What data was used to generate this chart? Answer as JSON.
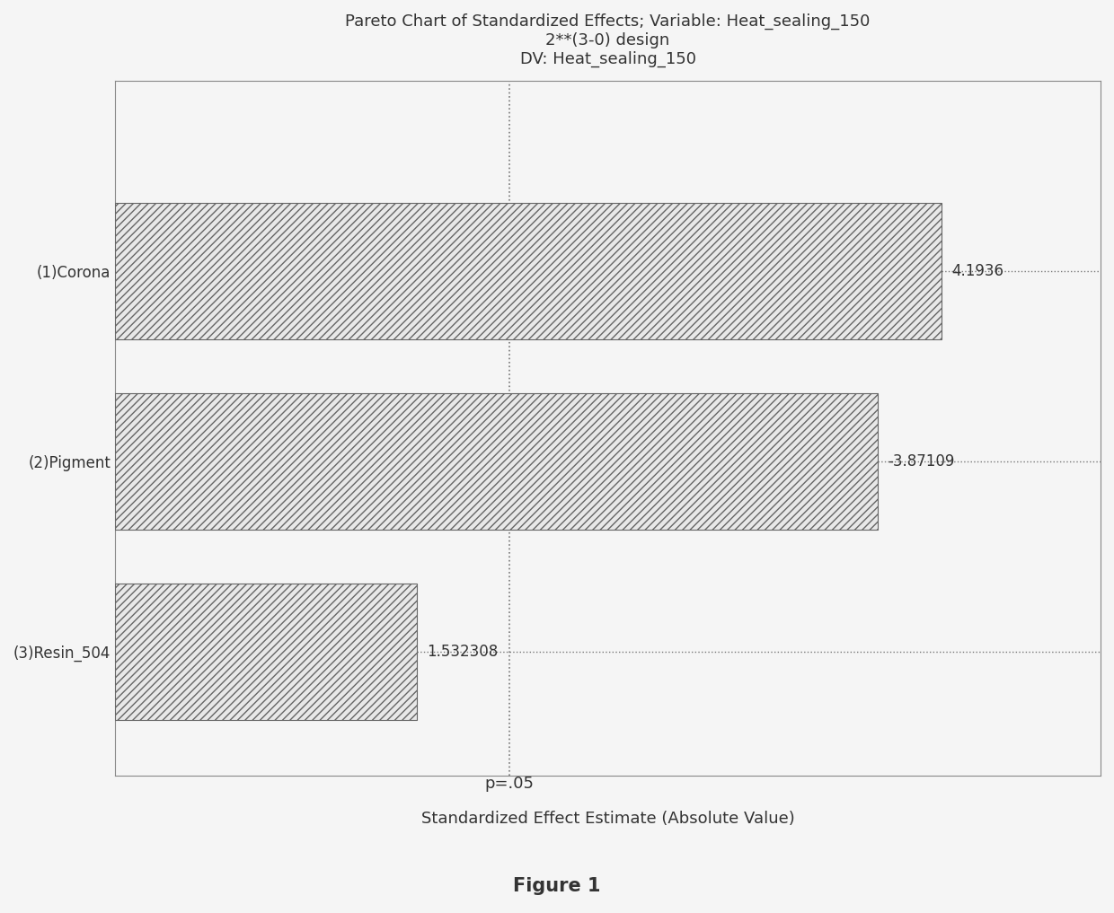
{
  "title_line1": "Pareto Chart of Standardized Effects; Variable: Heat_sealing_150",
  "title_line2": "2**(3-0) design",
  "title_line3": "DV: Heat_sealing_150",
  "categories": [
    "(1)Corona",
    "(2)Pigment",
    "(3)Resin_504"
  ],
  "values": [
    4.1936,
    3.87109,
    1.532308
  ],
  "bar_labels": [
    "4.1936",
    "-3.87109",
    "1.532308"
  ],
  "p_line_value": 2.0,
  "p_label": "p=.05",
  "xlabel": "Standardized Effect Estimate (Absolute Value)",
  "figure_label": "Figure 1",
  "xlim": [
    0,
    5.0
  ],
  "bar_color": "#e8e8e8",
  "hatch": "////",
  "title_fontsize": 13,
  "label_fontsize": 13,
  "tick_fontsize": 12,
  "figure_label_fontsize": 15,
  "background_color": "#f5f5f5",
  "bar_edge_color": "#666666",
  "p_line_color": "#777777",
  "p_line_style": ":",
  "hline_style": ":"
}
